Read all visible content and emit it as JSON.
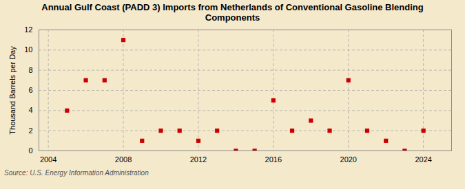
{
  "chart_data": {
    "type": "scatter",
    "title": "Annual Gulf Coast (PADD 3) Imports from Netherlands of Conventional Gasoline Blending\nComponents",
    "ylabel": "Thousand Barrels per Day",
    "annotations": [
      "Source: U.S. Energy Information Administration"
    ],
    "x": [
      2005,
      2006,
      2007,
      2008,
      2009,
      2010,
      2011,
      2012,
      2013,
      2014,
      2015,
      2016,
      2017,
      2018,
      2019,
      2020,
      2021,
      2022,
      2023,
      2024
    ],
    "values": [
      4,
      7,
      7,
      11,
      1,
      2,
      2,
      1,
      2,
      0,
      0,
      5,
      2,
      3,
      2,
      7,
      2,
      1,
      0,
      2
    ],
    "color": "#cc0000",
    "marker": "square",
    "xlim": [
      2003.5,
      2025.5
    ],
    "xticks": [
      2004,
      2008,
      2012,
      2016,
      2020,
      2024
    ],
    "ylim": [
      0,
      12
    ],
    "yticks": [
      0,
      2,
      4,
      6,
      8,
      10,
      12
    ],
    "grid": true
  }
}
